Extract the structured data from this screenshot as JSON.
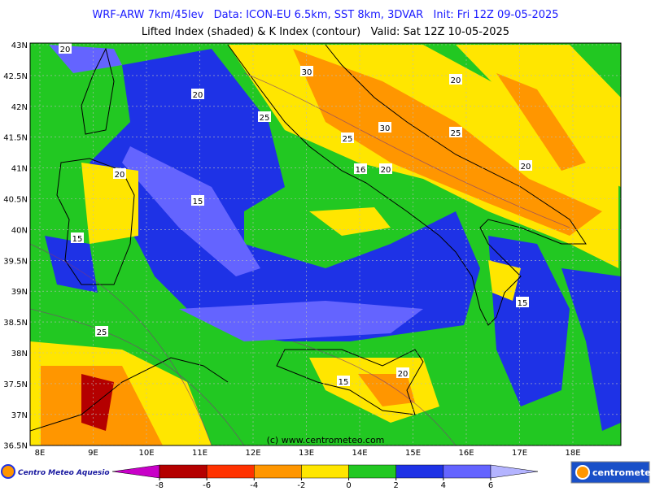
{
  "header": {
    "title": "WRF-ARW 7km/45lev   Data: ICON-EU 6.5km, SST 8km, 3DVAR   Init: Fri 12Z 09-05-2025",
    "subtitle": "Lifted Index (shaded) & K Index (contour)   Valid: Sat 12Z 10-05-2025"
  },
  "map": {
    "lat_labels": [
      "43N",
      "42.5N",
      "42N",
      "41.5N",
      "41N",
      "40.5N",
      "40N",
      "39.5N",
      "39N",
      "38.5N",
      "38N",
      "37.5N",
      "37N",
      "36.5N"
    ],
    "lon_labels": [
      "8E",
      "9E",
      "10E",
      "11E",
      "12E",
      "13E",
      "14E",
      "15E",
      "16E",
      "17E",
      "18E"
    ],
    "contour_labels": [
      "20",
      "20",
      "30",
      "25",
      "20",
      "25",
      "30",
      "25",
      "20",
      "20",
      "16",
      "20",
      "15",
      "15",
      "15",
      "25",
      "15",
      "20"
    ],
    "copyright": "(c) www.centrometeo.com"
  },
  "colorbar": {
    "ticks": [
      -8,
      -6,
      -4,
      -2,
      0,
      2,
      4,
      6
    ],
    "colors": [
      "#c800c8",
      "#b40000",
      "#ff3200",
      "#ff9600",
      "#ffe600",
      "#22c822",
      "#1e32e6",
      "#6464ff",
      "#b4b4ff"
    ]
  },
  "footer": {
    "left_logo": "Centro Meteo Aquesio",
    "right_logo": "centrometeo"
  }
}
